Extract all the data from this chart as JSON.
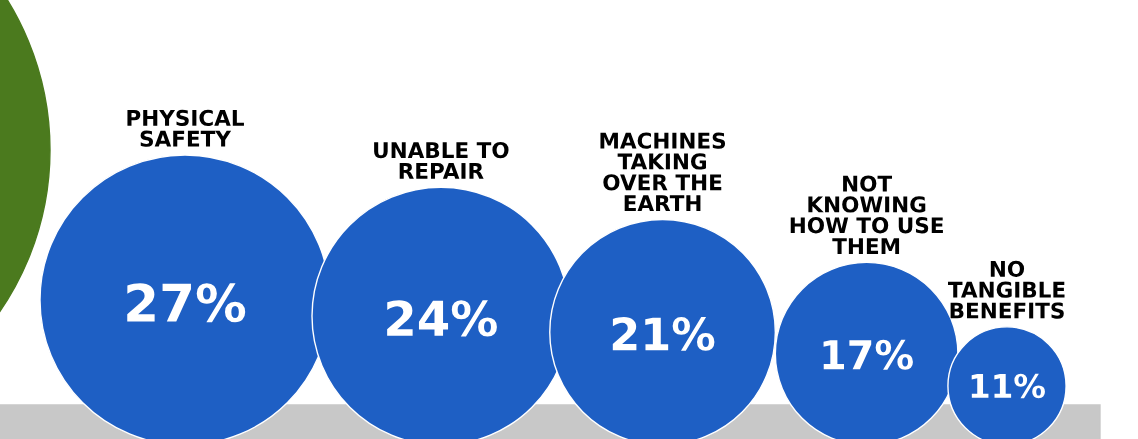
{
  "chart_data": {
    "type": "other",
    "categories": [
      "PHYSICAL\nSAFETY",
      "UNABLE TO\nREPAIR",
      "MACHINES\nTAKING\nOVER THE\nEARTH",
      "NOT\nKNOWING\nHOW TO USE\nTHEM",
      "NO\nTANGIBLE\nBENEFITS"
    ],
    "values": [
      27,
      24,
      21,
      17,
      11
    ],
    "value_labels": [
      "27%",
      "24%",
      "21%",
      "17%",
      "11%"
    ],
    "color": "#1e5fc4"
  }
}
